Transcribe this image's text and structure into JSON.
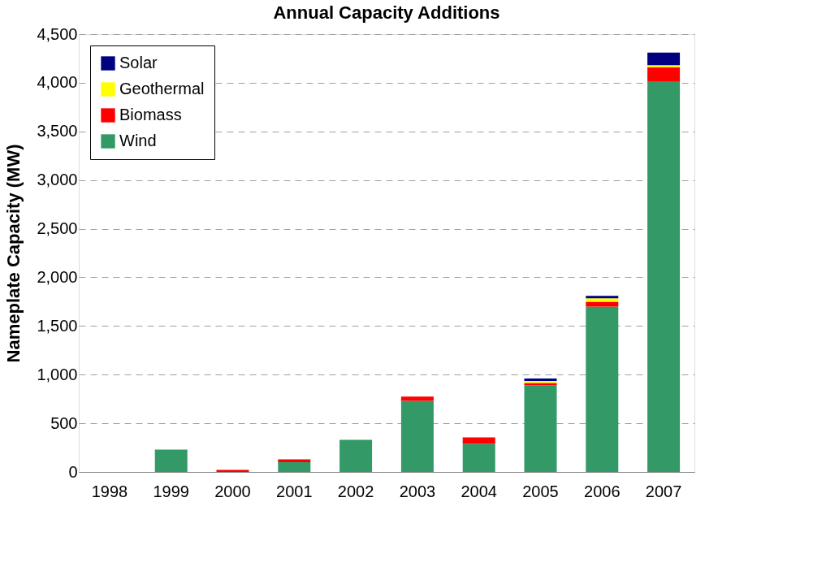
{
  "chart_data": {
    "type": "bar",
    "title": "Annual Capacity Additions",
    "ylabel": "Nameplate Capacity (MW)",
    "stacked": true,
    "categories": [
      "1998",
      "1999",
      "2000",
      "2001",
      "2002",
      "2003",
      "2004",
      "2005",
      "2006",
      "2007"
    ],
    "series": [
      {
        "name": "Wind",
        "color": "#339966",
        "values": [
          0,
          230,
          null,
          100,
          330,
          730,
          290,
          890,
          1700,
          4010
        ]
      },
      {
        "name": "Biomass",
        "color": "#ff0000",
        "values": [
          null,
          null,
          20,
          30,
          null,
          45,
          65,
          25,
          50,
          150
        ]
      },
      {
        "name": "Geothermal",
        "color": "#ffff00",
        "values": [
          null,
          null,
          null,
          null,
          null,
          null,
          null,
          20,
          35,
          20
        ]
      },
      {
        "name": "Solar",
        "color": "#000080",
        "values": [
          null,
          null,
          null,
          null,
          null,
          null,
          null,
          25,
          25,
          130
        ]
      }
    ],
    "ylim": [
      0,
      4500
    ],
    "yticks": [
      0,
      {
        "value": 500,
        "label": "500"
      },
      {
        "value": 1000,
        "label": "1,000"
      },
      {
        "value": 1500,
        "label": "1,500"
      },
      {
        "value": 2000,
        "label": "2,000"
      },
      {
        "value": 2500,
        "label": "2,500"
      },
      {
        "value": 3000,
        "label": "3,000"
      },
      {
        "value": 3500,
        "label": "3,500"
      },
      {
        "value": 4000,
        "label": "4,000"
      },
      {
        "value": 4500,
        "label": "4,500"
      }
    ],
    "grid": "y",
    "legend": "top left"
  }
}
